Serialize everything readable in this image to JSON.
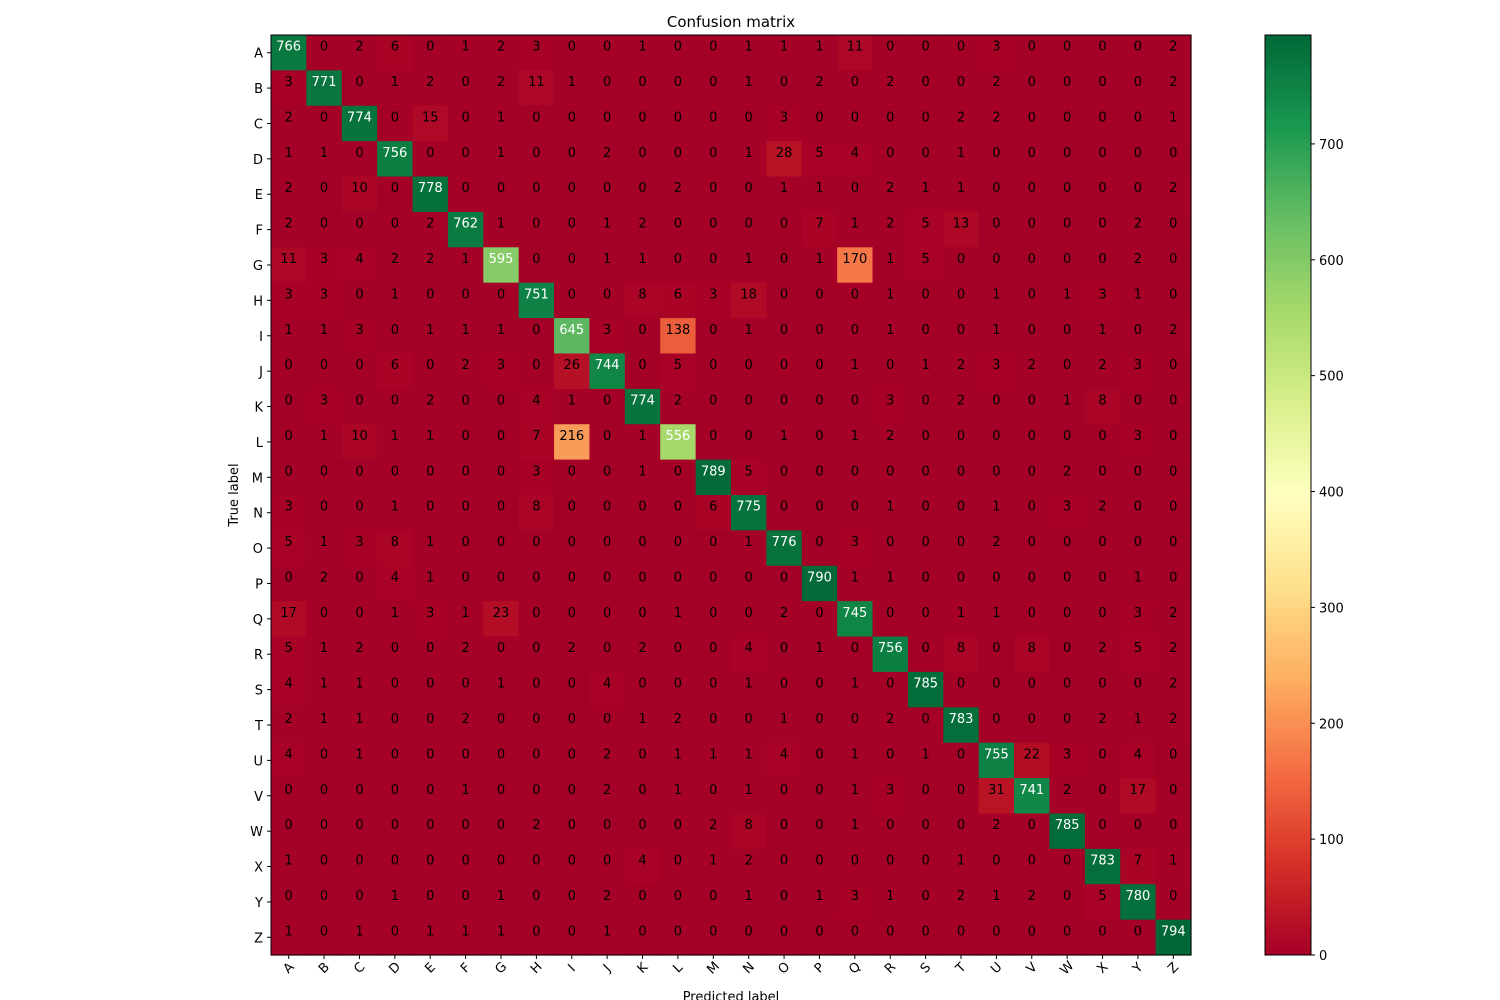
{
  "chart_data": {
    "type": "heatmap",
    "title": "Confusion matrix",
    "xlabel": "Predicted label",
    "ylabel": "True label",
    "x_labels": [
      "A",
      "B",
      "C",
      "D",
      "E",
      "F",
      "G",
      "H",
      "I",
      "J",
      "K",
      "L",
      "M",
      "N",
      "O",
      "P",
      "Q",
      "R",
      "S",
      "T",
      "U",
      "V",
      "W",
      "X",
      "Y",
      "Z"
    ],
    "y_labels": [
      "A",
      "B",
      "C",
      "D",
      "E",
      "F",
      "G",
      "H",
      "I",
      "J",
      "K",
      "L",
      "M",
      "N",
      "O",
      "P",
      "Q",
      "R",
      "S",
      "T",
      "U",
      "V",
      "W",
      "X",
      "Y",
      "Z"
    ],
    "matrix": [
      [
        766,
        0,
        2,
        6,
        0,
        1,
        2,
        3,
        0,
        0,
        1,
        0,
        0,
        1,
        1,
        1,
        11,
        0,
        0,
        0,
        3,
        0,
        0,
        0,
        0,
        2
      ],
      [
        3,
        771,
        0,
        1,
        2,
        0,
        2,
        11,
        1,
        0,
        0,
        0,
        0,
        1,
        0,
        2,
        0,
        2,
        0,
        0,
        2,
        0,
        0,
        0,
        0,
        2
      ],
      [
        2,
        0,
        774,
        0,
        15,
        0,
        1,
        0,
        0,
        0,
        0,
        0,
        0,
        0,
        3,
        0,
        0,
        0,
        0,
        2,
        2,
        0,
        0,
        0,
        0,
        1
      ],
      [
        1,
        1,
        0,
        756,
        0,
        0,
        1,
        0,
        0,
        2,
        0,
        0,
        0,
        1,
        28,
        5,
        4,
        0,
        0,
        1,
        0,
        0,
        0,
        0,
        0,
        0
      ],
      [
        2,
        0,
        10,
        0,
        778,
        0,
        0,
        0,
        0,
        0,
        0,
        2,
        0,
        0,
        1,
        1,
        0,
        2,
        1,
        1,
        0,
        0,
        0,
        0,
        0,
        2
      ],
      [
        2,
        0,
        0,
        0,
        2,
        762,
        1,
        0,
        0,
        1,
        2,
        0,
        0,
        0,
        0,
        7,
        1,
        2,
        5,
        13,
        0,
        0,
        0,
        0,
        2,
        0
      ],
      [
        11,
        3,
        4,
        2,
        2,
        1,
        595,
        0,
        0,
        1,
        1,
        0,
        0,
        1,
        0,
        1,
        170,
        1,
        5,
        0,
        0,
        0,
        0,
        0,
        2,
        0
      ],
      [
        3,
        3,
        0,
        1,
        0,
        0,
        0,
        751,
        0,
        0,
        8,
        6,
        3,
        18,
        0,
        0,
        0,
        1,
        0,
        0,
        1,
        0,
        1,
        3,
        1,
        0
      ],
      [
        1,
        1,
        3,
        0,
        1,
        1,
        1,
        0,
        645,
        3,
        0,
        138,
        0,
        1,
        0,
        0,
        0,
        1,
        0,
        0,
        1,
        0,
        0,
        1,
        0,
        2
      ],
      [
        0,
        0,
        0,
        6,
        0,
        2,
        3,
        0,
        26,
        744,
        0,
        5,
        0,
        0,
        0,
        0,
        1,
        0,
        1,
        2,
        3,
        2,
        0,
        2,
        3,
        0
      ],
      [
        0,
        3,
        0,
        0,
        2,
        0,
        0,
        4,
        1,
        0,
        774,
        2,
        0,
        0,
        0,
        0,
        0,
        3,
        0,
        2,
        0,
        0,
        1,
        8,
        0,
        0
      ],
      [
        0,
        1,
        10,
        1,
        1,
        0,
        0,
        7,
        216,
        0,
        1,
        556,
        0,
        0,
        1,
        0,
        1,
        2,
        0,
        0,
        0,
        0,
        0,
        0,
        3,
        0
      ],
      [
        0,
        0,
        0,
        0,
        0,
        0,
        0,
        3,
        0,
        0,
        1,
        0,
        789,
        5,
        0,
        0,
        0,
        0,
        0,
        0,
        0,
        0,
        2,
        0,
        0,
        0
      ],
      [
        3,
        0,
        0,
        1,
        0,
        0,
        0,
        8,
        0,
        0,
        0,
        0,
        6,
        775,
        0,
        0,
        0,
        1,
        0,
        0,
        1,
        0,
        3,
        2,
        0,
        0
      ],
      [
        5,
        1,
        3,
        8,
        1,
        0,
        0,
        0,
        0,
        0,
        0,
        0,
        0,
        1,
        776,
        0,
        3,
        0,
        0,
        0,
        2,
        0,
        0,
        0,
        0,
        0
      ],
      [
        0,
        2,
        0,
        4,
        1,
        0,
        0,
        0,
        0,
        0,
        0,
        0,
        0,
        0,
        0,
        790,
        1,
        1,
        0,
        0,
        0,
        0,
        0,
        0,
        1,
        0
      ],
      [
        17,
        0,
        0,
        1,
        3,
        1,
        23,
        0,
        0,
        0,
        0,
        1,
        0,
        0,
        2,
        0,
        745,
        0,
        0,
        1,
        1,
        0,
        0,
        0,
        3,
        2
      ],
      [
        5,
        1,
        2,
        0,
        0,
        2,
        0,
        0,
        2,
        0,
        2,
        0,
        0,
        4,
        0,
        1,
        0,
        756,
        0,
        8,
        0,
        8,
        0,
        2,
        5,
        2
      ],
      [
        4,
        1,
        1,
        0,
        0,
        0,
        1,
        0,
        0,
        4,
        0,
        0,
        0,
        1,
        0,
        0,
        1,
        0,
        785,
        0,
        0,
        0,
        0,
        0,
        0,
        2
      ],
      [
        2,
        1,
        1,
        0,
        0,
        2,
        0,
        0,
        0,
        0,
        1,
        2,
        0,
        0,
        1,
        0,
        0,
        2,
        0,
        783,
        0,
        0,
        0,
        2,
        1,
        2
      ],
      [
        4,
        0,
        1,
        0,
        0,
        0,
        0,
        0,
        0,
        2,
        0,
        1,
        1,
        1,
        4,
        0,
        1,
        0,
        1,
        0,
        755,
        22,
        3,
        0,
        4,
        0
      ],
      [
        0,
        0,
        0,
        0,
        0,
        1,
        0,
        0,
        0,
        2,
        0,
        1,
        0,
        1,
        0,
        0,
        1,
        3,
        0,
        0,
        31,
        741,
        2,
        0,
        17,
        0
      ],
      [
        0,
        0,
        0,
        0,
        0,
        0,
        0,
        2,
        0,
        0,
        0,
        0,
        2,
        8,
        0,
        0,
        1,
        0,
        0,
        0,
        2,
        0,
        785,
        0,
        0,
        0
      ],
      [
        1,
        0,
        0,
        0,
        0,
        0,
        0,
        0,
        0,
        0,
        4,
        0,
        1,
        2,
        0,
        0,
        0,
        0,
        0,
        1,
        0,
        0,
        0,
        783,
        7,
        1
      ],
      [
        0,
        0,
        0,
        1,
        0,
        0,
        1,
        0,
        0,
        2,
        0,
        0,
        0,
        1,
        0,
        1,
        3,
        1,
        0,
        2,
        1,
        2,
        0,
        5,
        780,
        0
      ],
      [
        1,
        0,
        1,
        0,
        1,
        1,
        1,
        0,
        0,
        1,
        0,
        0,
        0,
        0,
        0,
        0,
        0,
        0,
        0,
        0,
        0,
        0,
        0,
        0,
        0,
        794
      ]
    ],
    "colormap": "RdYlGn",
    "vmin": 0,
    "vmax": 794,
    "colorbar_ticks": [
      0,
      100,
      200,
      300,
      400,
      500,
      600,
      700
    ],
    "text_color_dark": "#000000",
    "text_color_light": "#ffffff"
  }
}
